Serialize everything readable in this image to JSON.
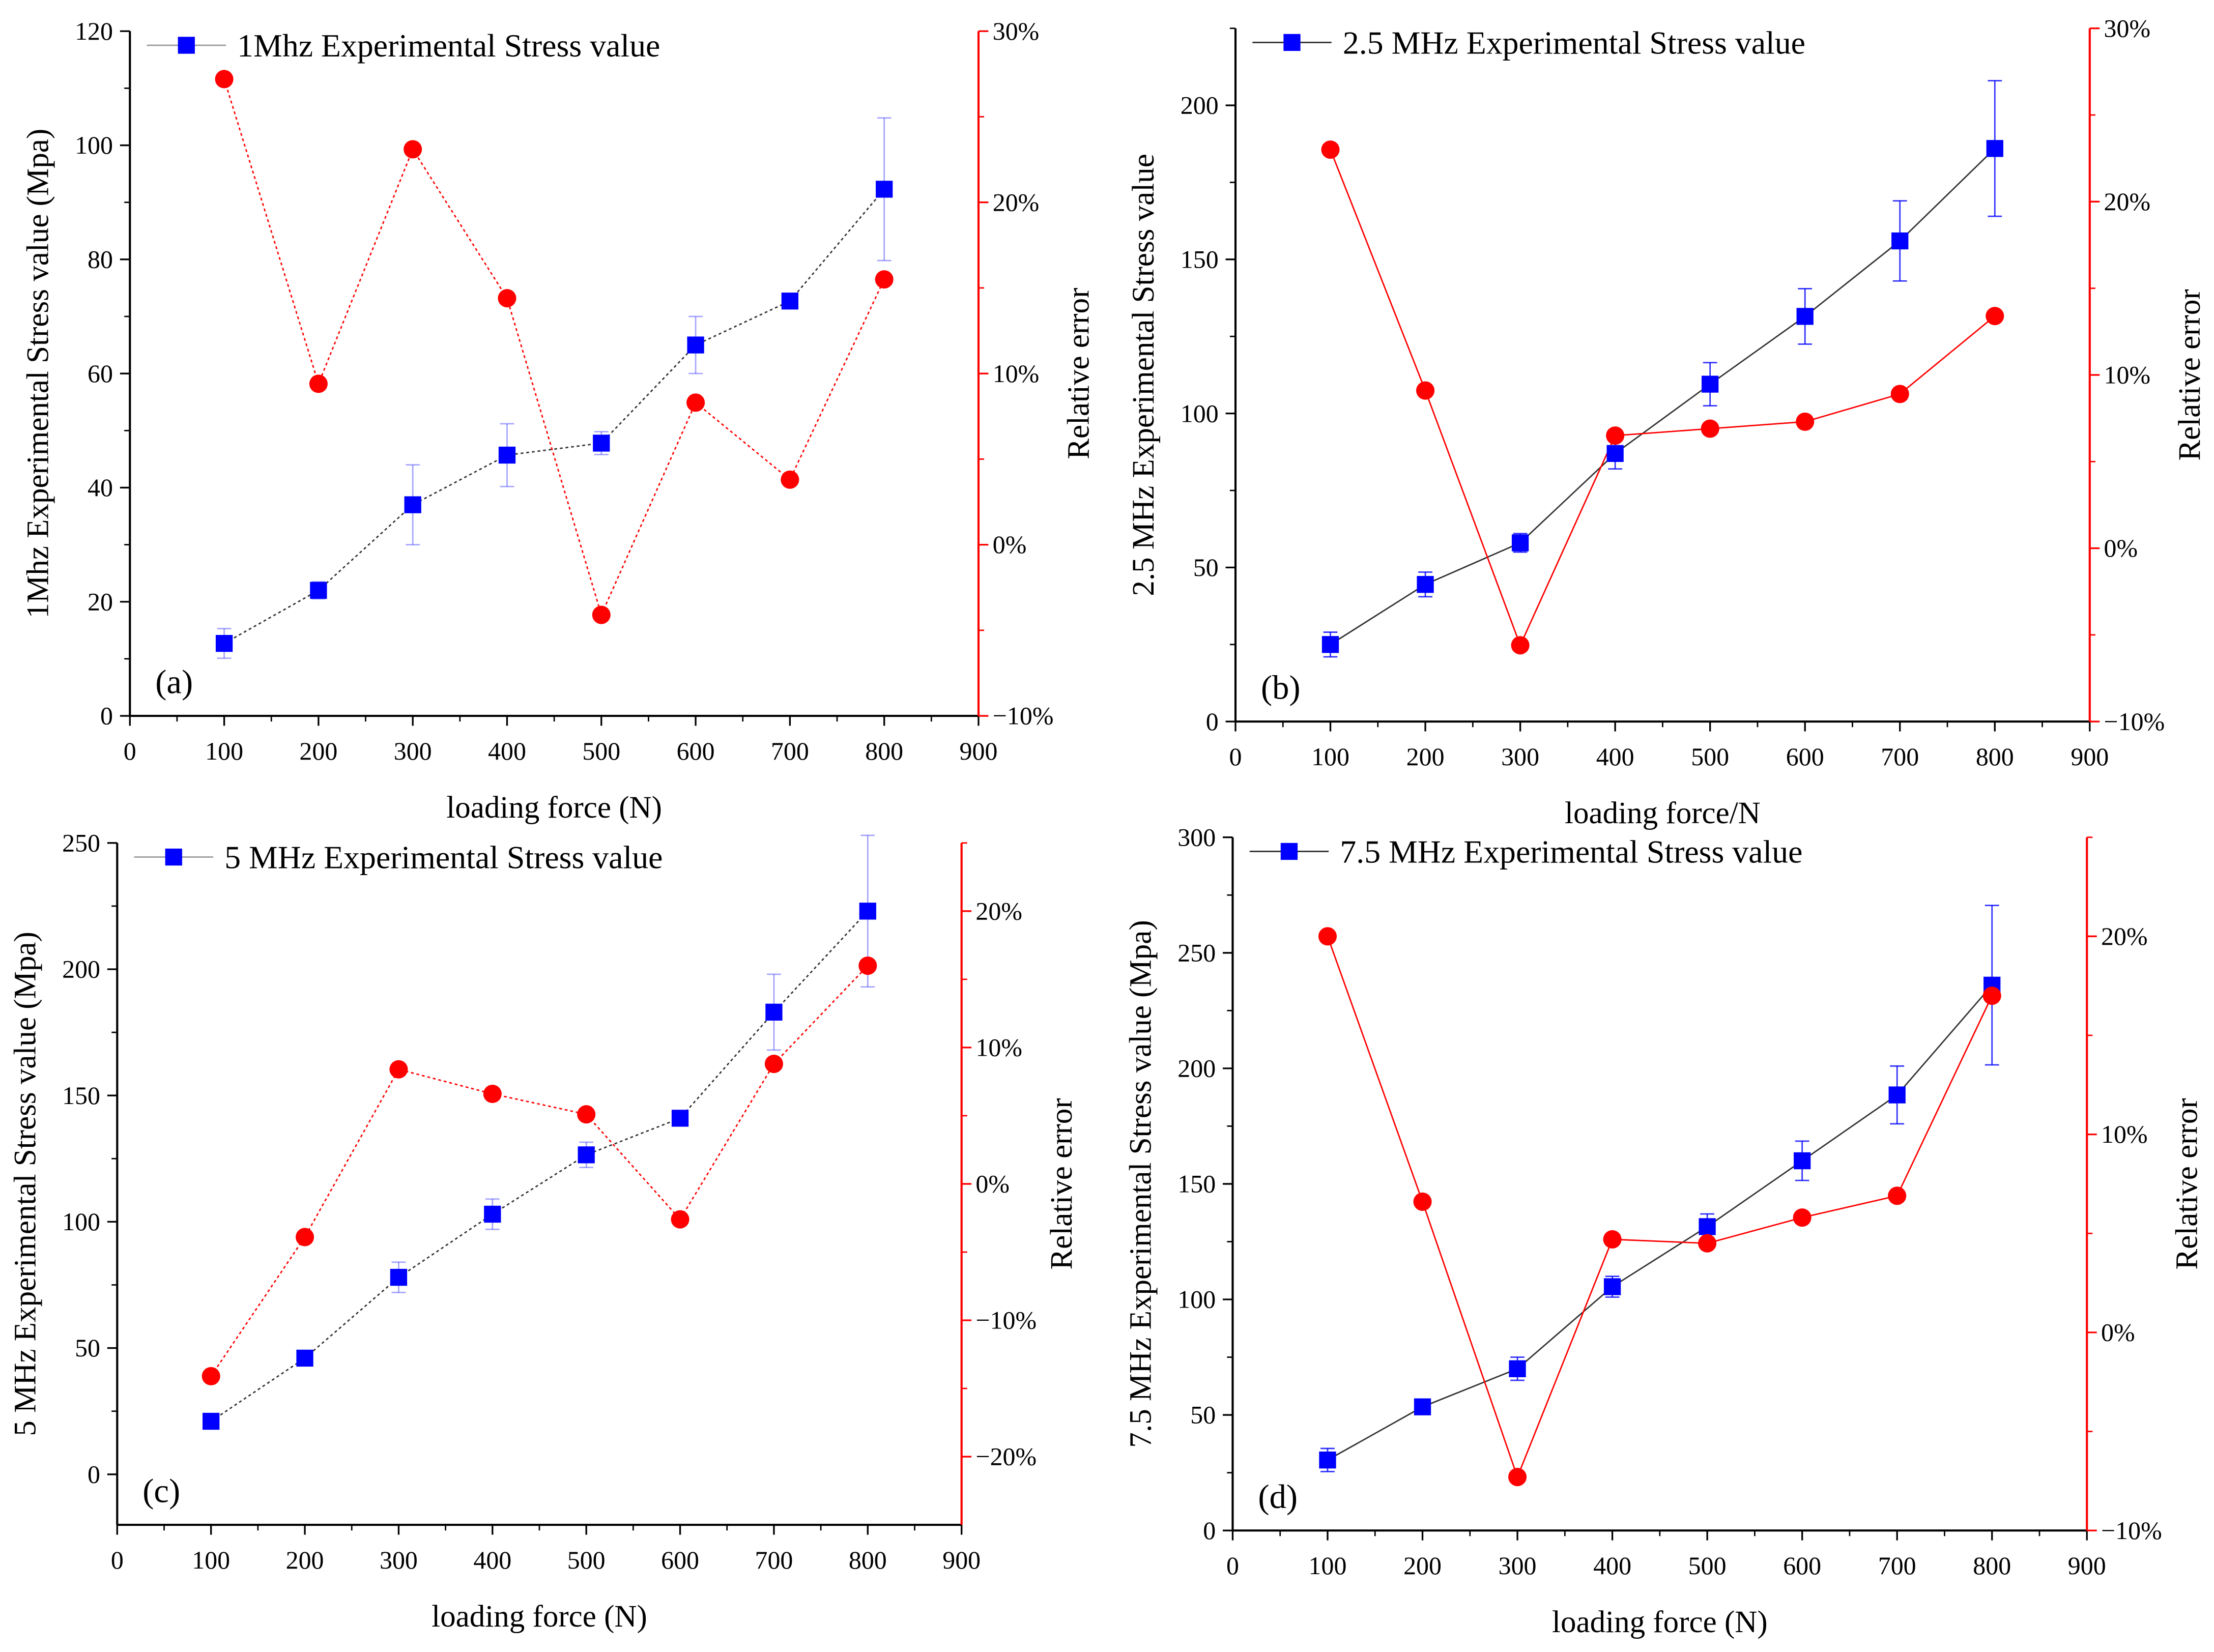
{
  "colors": {
    "stress": "#0000ff",
    "error": "#ff0000",
    "axis": "#000000",
    "stress_line": "#333333"
  },
  "chart_data": [
    {
      "type": "line",
      "panel_label": "(a)",
      "legend": "1Mhz Experimental Stress value",
      "legend_position": "top-left",
      "xlabel": "loading force (N)",
      "ylabel": "1Mhz Experimental Stress value (Mpa)",
      "y2label": "Relative error",
      "xlim": [
        0,
        900
      ],
      "ylim": [
        0,
        120
      ],
      "y2lim": [
        -10,
        30
      ],
      "xticks": [
        0,
        100,
        200,
        300,
        400,
        500,
        600,
        700,
        800,
        900
      ],
      "yticks": [
        0,
        20,
        40,
        60,
        80,
        100,
        120
      ],
      "y2ticks": [
        -10,
        0,
        10,
        20,
        30
      ],
      "y2tick_labels": [
        "−10%",
        "0%",
        "10%",
        "20%",
        "30%"
      ],
      "x": [
        100,
        200,
        300,
        400,
        500,
        600,
        700,
        800
      ],
      "series": [
        {
          "name": "1Mhz Experimental Stress value",
          "axis": "left",
          "values": [
            12.7,
            22,
            37,
            45.7,
            47.8,
            65,
            72.7,
            92.3
          ],
          "errors": [
            2.6,
            1.5,
            7,
            5.5,
            2,
            5,
            1,
            12.5
          ]
        },
        {
          "name": "Relative error",
          "axis": "right",
          "unit": "%",
          "values": [
            27.2,
            9.4,
            23.1,
            14.4,
            -4.1,
            8.3,
            3.8,
            15.5
          ]
        }
      ]
    },
    {
      "type": "line",
      "panel_label": "(b)",
      "legend": "2.5 MHz Experimental Stress value",
      "legend_position": "top-left",
      "xlabel": "loading force/N",
      "ylabel": "2.5 MHz Experimental Stress value",
      "y2label": "Relative error",
      "xlim": [
        0,
        900
      ],
      "ylim": [
        0,
        225
      ],
      "y2lim": [
        -10,
        30
      ],
      "xticks": [
        0,
        100,
        200,
        300,
        400,
        500,
        600,
        700,
        800,
        900
      ],
      "yticks": [
        0,
        50,
        100,
        150,
        200
      ],
      "y2ticks": [
        -10,
        0,
        10,
        20,
        30
      ],
      "y2tick_labels": [
        "−10%",
        "0%",
        "10%",
        "20%",
        "30%"
      ],
      "x": [
        100,
        200,
        300,
        400,
        500,
        600,
        700,
        800
      ],
      "series": [
        {
          "name": "2.5 MHz Experimental Stress value",
          "axis": "left",
          "values": [
            25,
            44.5,
            58,
            87,
            109.5,
            131.5,
            156,
            186
          ],
          "errors": [
            4,
            4,
            3,
            5,
            7,
            9,
            13,
            22
          ]
        },
        {
          "name": "Relative error",
          "axis": "right",
          "unit": "%",
          "values": [
            23.0,
            9.1,
            -5.6,
            6.5,
            6.9,
            7.3,
            8.9,
            13.4
          ]
        }
      ]
    },
    {
      "type": "line",
      "panel_label": "(c)",
      "legend": "5 MHz Experimental Stress value",
      "legend_position": "top-left",
      "xlabel": "loading force (N)",
      "ylabel": "5 MHz Experimental Stress value (Mpa)",
      "y2label": "Relative error",
      "xlim": [
        0,
        900
      ],
      "ylim": [
        -20,
        250
      ],
      "y2lim": [
        -25,
        25
      ],
      "xticks": [
        0,
        100,
        200,
        300,
        400,
        500,
        600,
        700,
        800,
        900
      ],
      "yticks": [
        0,
        50,
        100,
        150,
        200,
        250
      ],
      "y2ticks": [
        -20,
        -10,
        0,
        10,
        20
      ],
      "y2tick_labels": [
        "−20%",
        "−10%",
        "0%",
        "10%",
        "20%"
      ],
      "x": [
        100,
        200,
        300,
        400,
        500,
        600,
        700,
        800
      ],
      "series": [
        {
          "name": "5 MHz Experimental Stress value",
          "axis": "left",
          "values": [
            21,
            46,
            78,
            103,
            126.5,
            141,
            183,
            223
          ],
          "errors": [
            2,
            2,
            6,
            6,
            5,
            3,
            15,
            30
          ]
        },
        {
          "name": "Relative error",
          "axis": "right",
          "unit": "%",
          "values": [
            -14.1,
            -3.9,
            8.4,
            6.6,
            5.1,
            -2.6,
            8.8,
            16.0
          ]
        }
      ]
    },
    {
      "type": "line",
      "panel_label": "(d)",
      "legend": "7.5 MHz Experimental Stress value",
      "legend_position": "top-left",
      "xlabel": "loading force (N)",
      "ylabel": "7.5 MHz Experimental Stress value (Mpa)",
      "y2label": "Relative error",
      "xlim": [
        0,
        900
      ],
      "ylim": [
        0,
        300
      ],
      "y2lim": [
        -10,
        25
      ],
      "xticks": [
        0,
        100,
        200,
        300,
        400,
        500,
        600,
        700,
        800,
        900
      ],
      "yticks": [
        0,
        50,
        100,
        150,
        200,
        250,
        300
      ],
      "y2ticks": [
        -10,
        0,
        10,
        20
      ],
      "y2tick_labels": [
        "−10%",
        "0%",
        "10%",
        "20%"
      ],
      "x": [
        100,
        200,
        300,
        400,
        500,
        600,
        700,
        800
      ],
      "series": [
        {
          "name": "7.5 MHz Experimental Stress value",
          "axis": "left",
          "values": [
            30.5,
            53.5,
            70,
            105.5,
            131.5,
            160,
            188.5,
            236
          ],
          "errors": [
            5,
            2,
            5,
            4.5,
            5.5,
            8.5,
            12.5,
            34.5
          ]
        },
        {
          "name": "Relative error",
          "axis": "right",
          "unit": "%",
          "values": [
            20.0,
            6.6,
            -7.3,
            4.7,
            4.5,
            5.8,
            6.9,
            17.0
          ]
        }
      ]
    }
  ]
}
